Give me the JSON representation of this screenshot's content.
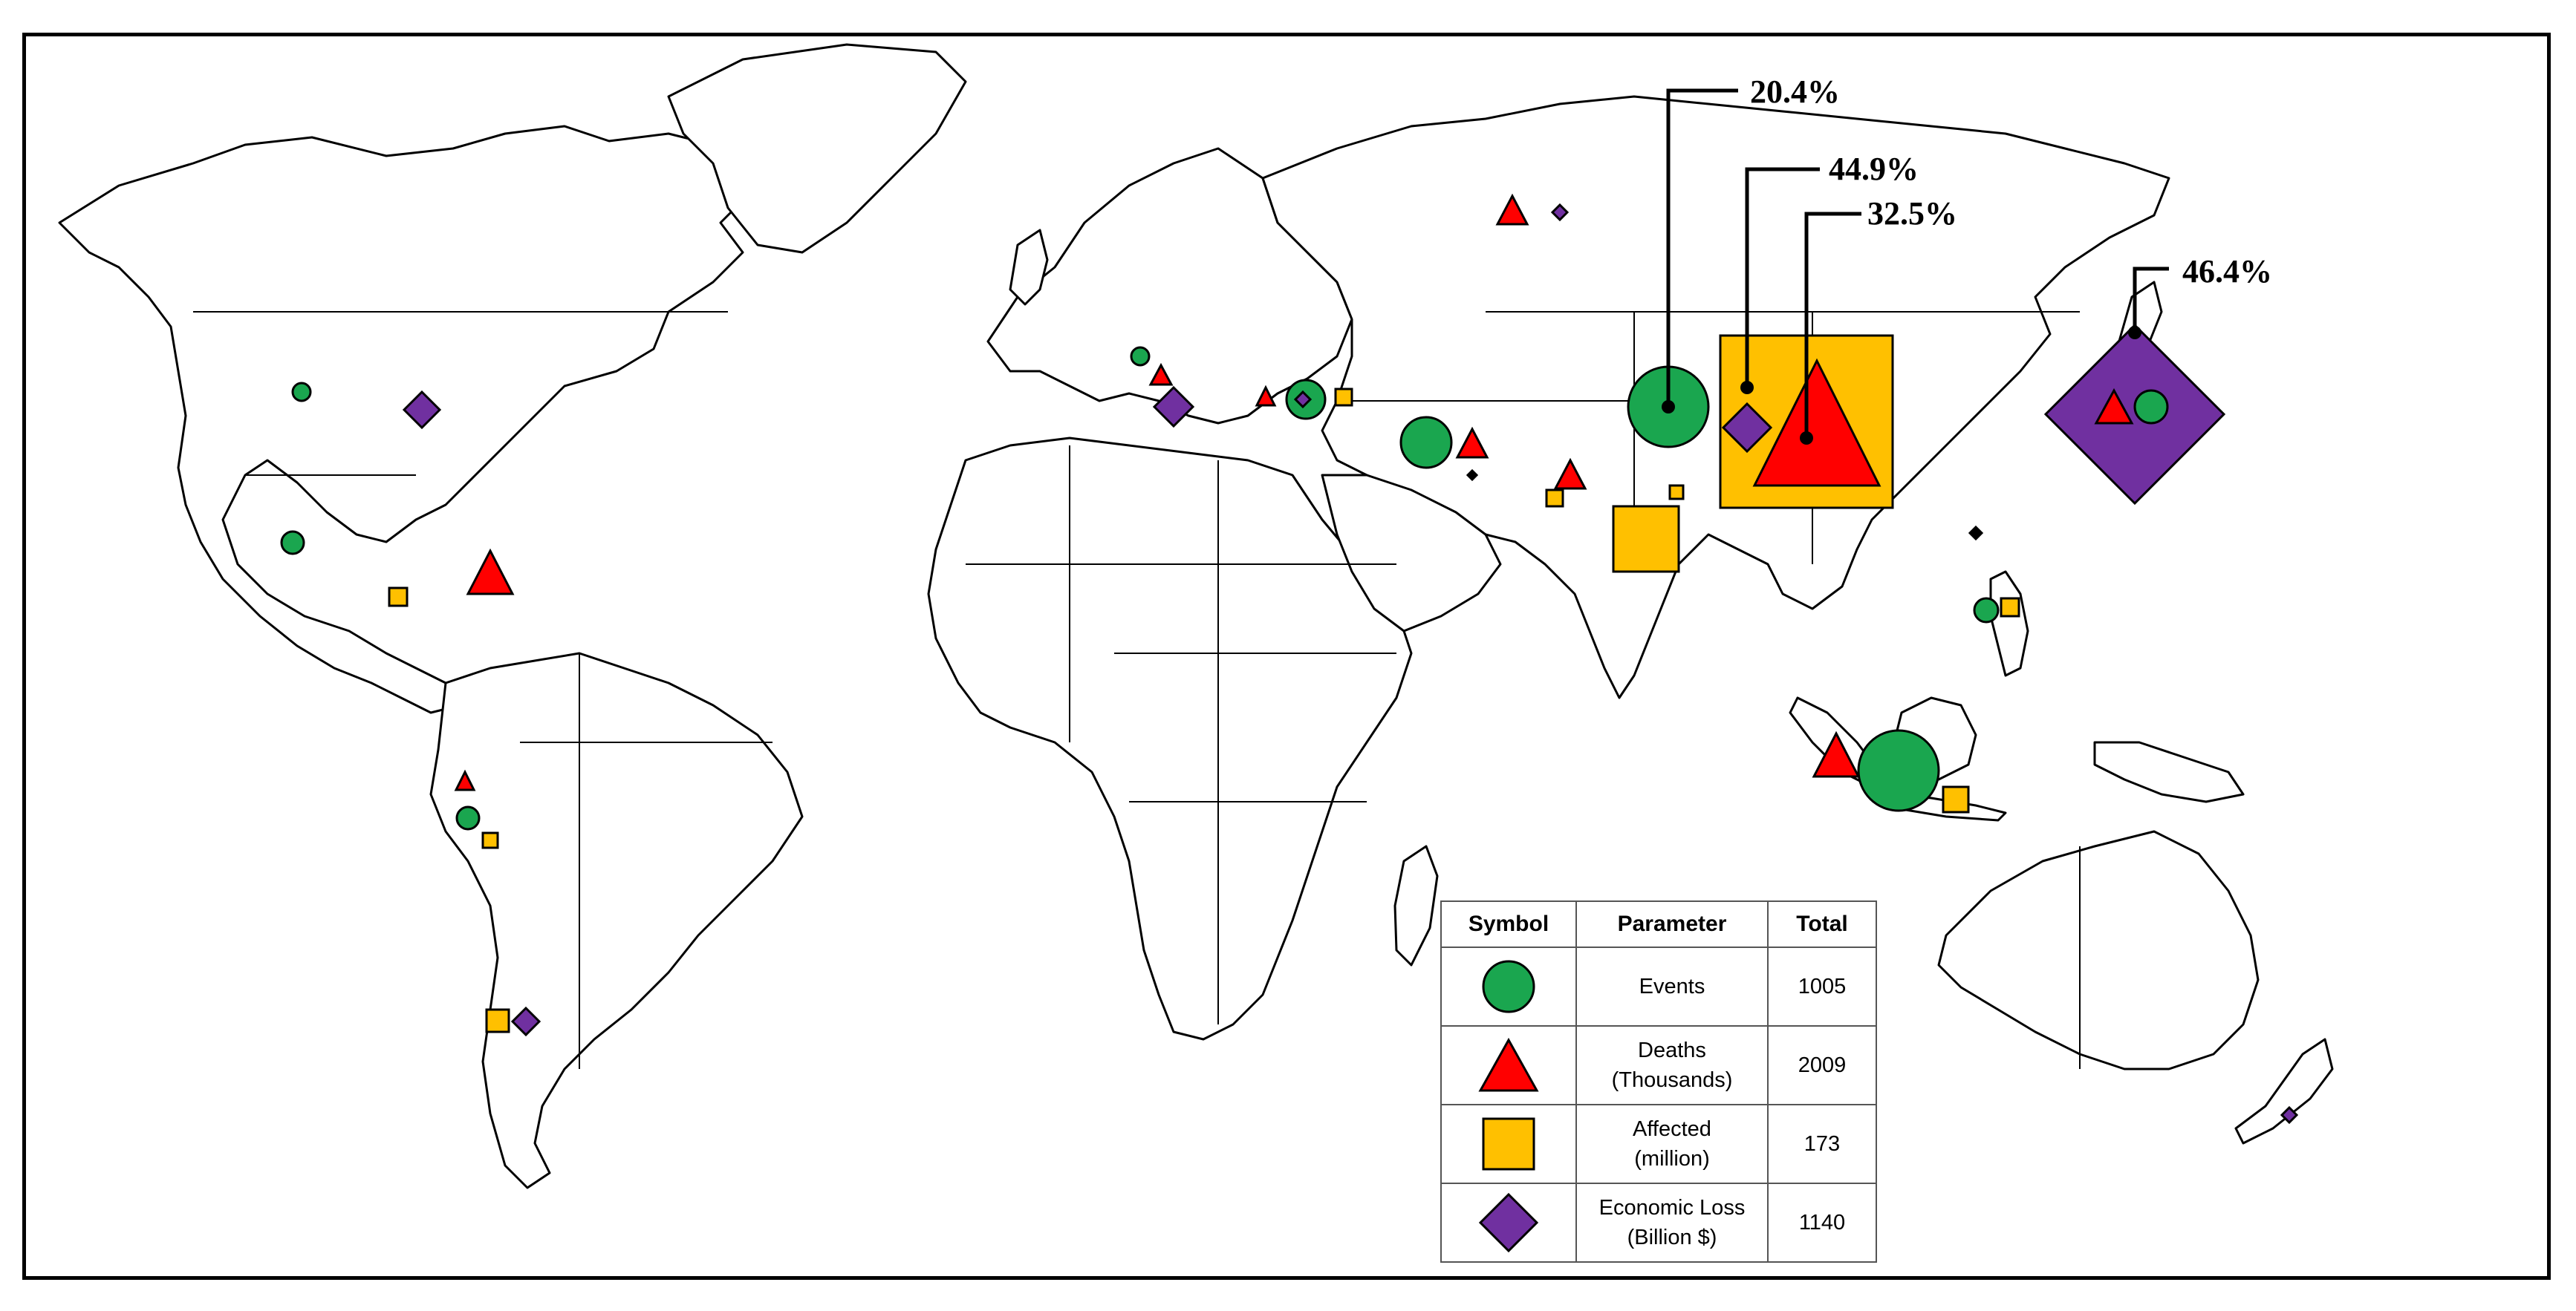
{
  "colors": {
    "events": "#1aa64f",
    "deaths": "#ff0000",
    "affected": "#ffc000",
    "economic_loss": "#7030a0"
  },
  "callouts": [
    {
      "label": "20.4%",
      "symbol": "events",
      "region": "China"
    },
    {
      "label": "44.9%",
      "symbol": "economic_loss",
      "region": "China"
    },
    {
      "label": "32.5%",
      "symbol": "deaths",
      "region": "China"
    },
    {
      "label": "46.4%",
      "symbol": "economic_loss",
      "region": "Japan"
    }
  ],
  "legend": {
    "headers": {
      "symbol": "Symbol",
      "parameter": "Parameter",
      "total": "Total"
    },
    "rows": [
      {
        "icon": "green-circle-icon",
        "param_line1": "Events",
        "param_line2": "",
        "total": "1005"
      },
      {
        "icon": "red-triangle-icon",
        "param_line1": "Deaths",
        "param_line2": "(Thousands)",
        "total": "2009"
      },
      {
        "icon": "orange-square-icon",
        "param_line1": "Affected",
        "param_line2": "(million)",
        "total": "173"
      },
      {
        "icon": "purple-diamond-icon",
        "param_line1": "Economic Loss",
        "param_line2": "(Billion $)",
        "total": "1140"
      }
    ]
  }
}
